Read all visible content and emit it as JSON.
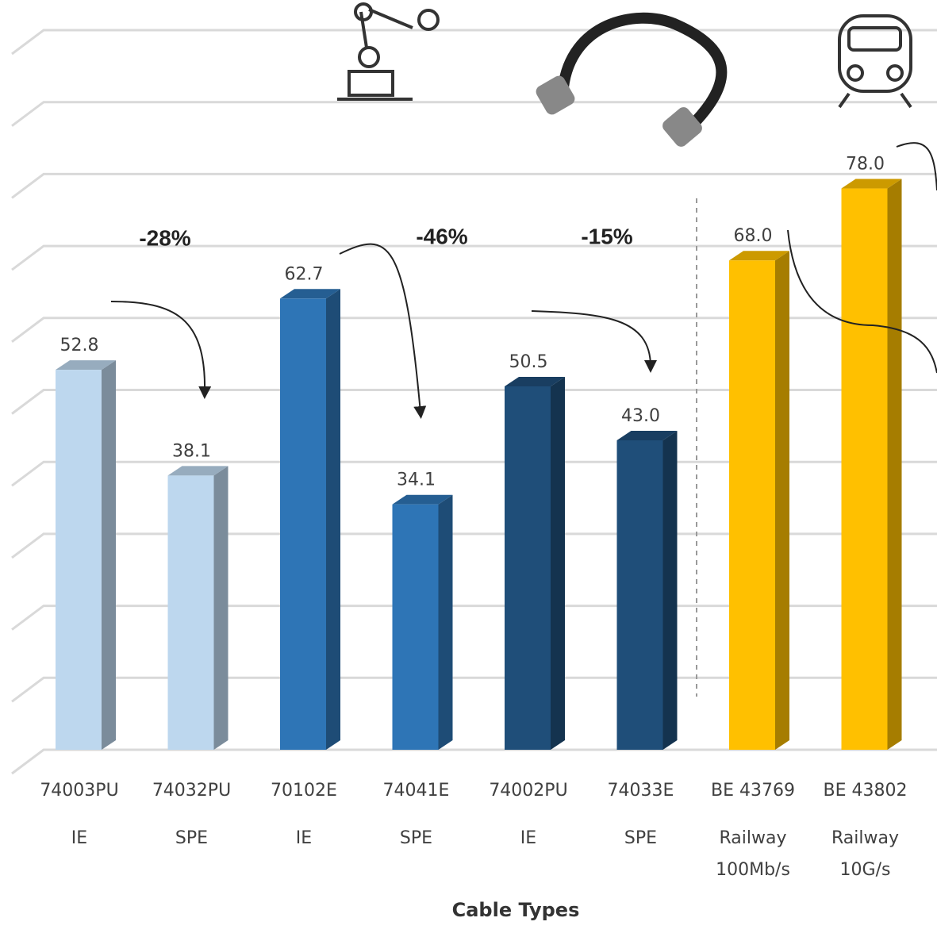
{
  "chart_data": {
    "type": "bar3d",
    "x_label": "Cable Types",
    "categories": [
      [
        "74003PU",
        "IE"
      ],
      [
        "74032PU",
        "SPE"
      ],
      [
        "70102E",
        "IE"
      ],
      [
        "74041E",
        "SPE"
      ],
      [
        "74002PU",
        "IE"
      ],
      [
        "74033E",
        "SPE"
      ],
      [
        "BE 43769",
        "Railway",
        "100Mb/s"
      ],
      [
        "BE 43802",
        "Railway",
        "10G/s"
      ]
    ],
    "values": [
      52.8,
      38.1,
      62.7,
      34.1,
      50.5,
      43.0,
      68.0,
      78.0
    ],
    "value_labels": [
      "52.8",
      "38.1",
      "62.7",
      "34.1",
      "50.5",
      "43.0",
      "68.0",
      "78.0"
    ],
    "colors": [
      "#bdd7ee",
      "#bdd7ee",
      "#2e75b6",
      "#2e75b6",
      "#1f4e79",
      "#1f4e79",
      "#ffc000",
      "#ffc000"
    ],
    "annotations": [
      "-28%",
      "-46%",
      "-15%"
    ],
    "ylim": [
      0,
      100
    ],
    "yticks": [
      0,
      10,
      20,
      30,
      40,
      50,
      60,
      70,
      80,
      90,
      100
    ],
    "grid": true
  }
}
